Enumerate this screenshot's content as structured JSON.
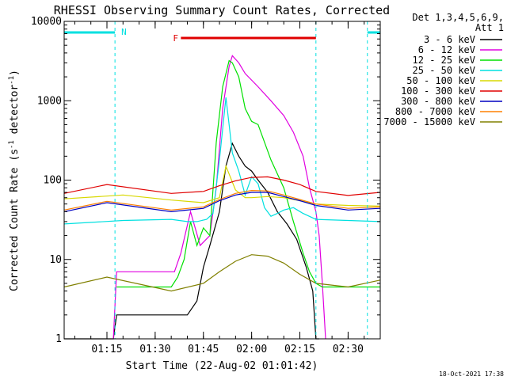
{
  "chart_data": {
    "type": "line",
    "title": "RHESSI Observing Summary Count Rates, Corrected",
    "xlabel": "Start Time (22-Aug-02 01:01:42)",
    "ylabel_main": "Corrected Count Rate (s",
    "ylabel_sup1": "-1",
    "ylabel_mid": " detector",
    "ylabel_sup2": "-1",
    "ylabel_end": ")",
    "y_scale": "log",
    "ylim": [
      1,
      10000
    ],
    "xlim": [
      61.7,
      160
    ],
    "x_unit": "minutes after 00:00 UT",
    "x_ticks": [
      {
        "x": 75,
        "label": "01:15"
      },
      {
        "x": 90,
        "label": "01:30"
      },
      {
        "x": 105,
        "label": "01:45"
      },
      {
        "x": 120,
        "label": "02:00"
      },
      {
        "x": 135,
        "label": "02:15"
      },
      {
        "x": 150,
        "label": "02:30"
      }
    ],
    "y_ticks": [
      {
        "y": 1,
        "label": "1"
      },
      {
        "y": 10,
        "label": "10"
      },
      {
        "y": 100,
        "label": "100"
      },
      {
        "y": 1000,
        "label": "1000"
      },
      {
        "y": 10000,
        "label": "10000"
      }
    ],
    "legend_header": [
      "Det 1,3,4,5,6,9,",
      "Att 1"
    ],
    "legend_position": "right",
    "timestamp": "18-Oct-2021 17:38",
    "flags": [
      {
        "label": "N",
        "color": "#00e0e0",
        "segments": [
          [
            61.7,
            77.5
          ],
          [
            156,
            160
          ]
        ]
      },
      {
        "label": "F",
        "color": "#e00000",
        "segments": [
          [
            98,
            140
          ]
        ]
      }
    ],
    "dashed_lines": [
      77.5,
      140,
      156
    ],
    "series": [
      {
        "name": "3 - 6 keV",
        "color": "#000000",
        "x": [
          61.7,
          77,
          78,
          100,
          103,
          105,
          107,
          110,
          112,
          114,
          116,
          118,
          120,
          122,
          125,
          128,
          131,
          134,
          137,
          139,
          140,
          141
        ],
        "y": [
          1,
          1,
          2,
          2,
          3,
          8,
          15,
          40,
          150,
          290,
          200,
          150,
          130,
          100,
          70,
          40,
          28,
          18,
          8,
          4,
          1,
          1
        ]
      },
      {
        "name": "6 - 12 keV",
        "color": "#e000e0",
        "x": [
          77,
          78,
          96,
          98,
          101,
          104,
          107,
          109,
          111,
          113,
          114,
          116,
          118,
          122,
          126,
          130,
          133,
          136,
          138,
          140,
          141,
          142,
          143
        ],
        "y": [
          1,
          7,
          7,
          12,
          40,
          15,
          20,
          80,
          800,
          2700,
          3700,
          3000,
          2200,
          1500,
          1000,
          650,
          400,
          200,
          80,
          40,
          20,
          5,
          1
        ]
      },
      {
        "name": "12 - 25 keV",
        "color": "#00e000",
        "x": [
          78,
          95,
          97,
          99,
          101,
          103,
          105,
          107,
          109,
          111,
          113,
          114,
          116,
          118,
          120,
          122,
          126,
          130,
          133,
          136,
          138,
          140,
          142,
          160
        ],
        "y": [
          4.5,
          4.5,
          6,
          10,
          30,
          15,
          25,
          20,
          300,
          1500,
          3200,
          3000,
          2000,
          800,
          550,
          500,
          180,
          80,
          30,
          12,
          7,
          5,
          4.5,
          4.5
        ]
      },
      {
        "name": "25 - 50 keV",
        "color": "#00e0e0",
        "x": [
          61.7,
          80,
          95,
          100,
          103,
          106,
          108,
          110,
          112,
          113,
          114,
          116,
          118,
          120,
          122,
          124,
          126,
          128,
          130,
          133,
          136,
          140,
          150,
          160
        ],
        "y": [
          28,
          31,
          32,
          30,
          30,
          32,
          38,
          180,
          1100,
          500,
          220,
          130,
          65,
          110,
          90,
          45,
          35,
          38,
          42,
          45,
          38,
          32,
          31,
          30
        ]
      },
      {
        "name": "50 - 100 keV",
        "color": "#d8d800",
        "x": [
          61.7,
          80,
          95,
          105,
          110,
          112,
          115,
          118,
          120,
          125,
          130,
          135,
          140,
          150,
          160
        ],
        "y": [
          58,
          65,
          56,
          52,
          60,
          150,
          75,
          60,
          60,
          62,
          60,
          55,
          50,
          48,
          47
        ]
      },
      {
        "name": "100 - 300 keV",
        "color": "#e00000",
        "x": [
          61.7,
          75,
          95,
          105,
          110,
          115,
          120,
          125,
          130,
          135,
          140,
          150,
          160
        ],
        "y": [
          68,
          88,
          68,
          72,
          85,
          98,
          108,
          110,
          100,
          88,
          72,
          64,
          70
        ]
      },
      {
        "name": "300 - 800 keV",
        "color": "#0000c0",
        "x": [
          61.7,
          75,
          95,
          105,
          110,
          115,
          120,
          125,
          130,
          135,
          140,
          150,
          160
        ],
        "y": [
          40,
          52,
          40,
          44,
          55,
          65,
          70,
          70,
          62,
          55,
          48,
          42,
          44
        ]
      },
      {
        "name": "800 - 7000 keV",
        "color": "#ff8000",
        "x": [
          61.7,
          75,
          95,
          105,
          110,
          115,
          120,
          125,
          130,
          135,
          140,
          150,
          160
        ],
        "y": [
          42,
          54,
          42,
          46,
          57,
          68,
          74,
          73,
          65,
          57,
          50,
          44,
          46
        ]
      },
      {
        "name": "7000 - 15000 keV",
        "color": "#808000",
        "x": [
          61.7,
          75,
          95,
          105,
          110,
          115,
          120,
          125,
          130,
          135,
          140,
          150,
          160
        ],
        "y": [
          4.5,
          6,
          4,
          5,
          7,
          9.5,
          11.5,
          11,
          9,
          6.5,
          5,
          4.5,
          5.5
        ]
      }
    ]
  }
}
